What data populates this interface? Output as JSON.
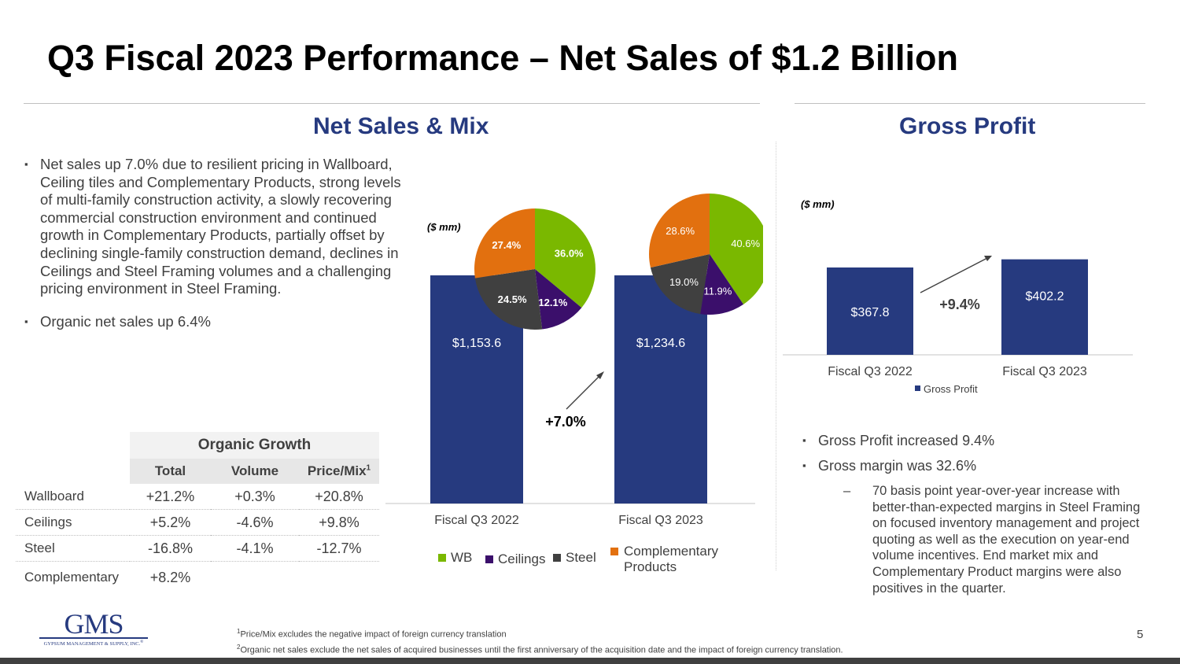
{
  "title": "Q3 Fiscal 2023 Performance – Net Sales of $1.2 Billion",
  "net_sales": {
    "heading": "Net Sales & Mix",
    "bullets": [
      "Net sales up 7.0% due to resilient pricing in Wallboard, Ceiling tiles and Complementary Products, strong levels of multi-family construction activity, a slowly recovering commercial construction environment and continued growth in Complementary Products, partially offset by declining single-family construction demand, declines in Ceilings and Steel Framing volumes and a challenging pricing environment in Steel Framing.",
      "Organic net sales up 6.4%"
    ],
    "unit_label": "($ mm)",
    "growth_label": "+7.0%"
  },
  "organic_growth": {
    "title": "Organic Growth",
    "columns": [
      "Total",
      "Volume",
      "Price/Mix"
    ],
    "price_mix_sup": "1",
    "rows": [
      {
        "label": "Wallboard",
        "total": "+21.2%",
        "volume": "+0.3%",
        "price_mix": "+20.8%"
      },
      {
        "label": "Ceilings",
        "total": "+5.2%",
        "volume": "-4.6%",
        "price_mix": "+9.8%"
      },
      {
        "label": "Steel",
        "total": "-16.8%",
        "volume": "-4.1%",
        "price_mix": "-12.7%"
      },
      {
        "label": "Complementary",
        "total": "+8.2%",
        "volume": "",
        "price_mix": ""
      }
    ]
  },
  "gross_profit": {
    "heading": "Gross Profit",
    "unit_label": "($ mm)",
    "growth_label": "+9.4%",
    "bullets": [
      "Gross Profit increased 9.4%",
      "Gross margin was 32.6%"
    ],
    "sub_bullet": "70 basis point year-over-year increase with better-than-expected margins in Steel Framing on focused inventory management and project quoting as well as the execution on year-end volume incentives.  End market mix and Complementary Product margins were also positives in the quarter.",
    "dash": "–"
  },
  "chart_data": [
    {
      "type": "bar",
      "title": "Net Sales",
      "categories": [
        "Fiscal Q3 2022",
        "Fiscal Q3 2023"
      ],
      "values": [
        1153.6,
        1234.6
      ],
      "value_labels": [
        "$1,153.6",
        "$1,234.6"
      ],
      "ylim": [
        0,
        1300
      ],
      "color": "#263a7f"
    },
    {
      "type": "pie",
      "title": "Fiscal Q3 2022 Mix",
      "labels": [
        "WB",
        "Ceilings",
        "Steel",
        "Complementary Products"
      ],
      "values": [
        36.0,
        12.1,
        24.5,
        27.4
      ],
      "value_labels": [
        "36.0%",
        "12.1%",
        "24.5%",
        "27.4%"
      ],
      "colors": [
        "#7ab800",
        "#3b0f6b",
        "#404040",
        "#e2700f"
      ]
    },
    {
      "type": "pie",
      "title": "Fiscal Q3 2023 Mix",
      "labels": [
        "WB",
        "Ceilings",
        "Steel",
        "Complementary Products"
      ],
      "values": [
        40.6,
        11.9,
        19.0,
        28.6
      ],
      "value_labels": [
        "40.6%",
        "11.9%",
        "19.0%",
        "28.6%"
      ],
      "colors": [
        "#7ab800",
        "#3b0f6b",
        "#404040",
        "#e2700f"
      ]
    },
    {
      "type": "bar",
      "title": "Gross Profit",
      "categories": [
        "Fiscal Q3 2022",
        "Fiscal Q3 2023"
      ],
      "values": [
        367.8,
        402.2
      ],
      "value_labels": [
        "$367.8",
        "$402.2"
      ],
      "ylim": [
        0,
        480
      ],
      "legend": [
        "Gross Profit"
      ],
      "color": "#263a7f"
    }
  ],
  "mix_legend": [
    {
      "label": "WB",
      "color": "#7ab800"
    },
    {
      "label": "Ceilings",
      "color": "#3b0f6b"
    },
    {
      "label": "Steel",
      "color": "#404040"
    },
    {
      "label": "Complementary Products",
      "color": "#e2700f"
    }
  ],
  "footnotes": {
    "n1_sup": "1",
    "n1": "Price/Mix excludes the negative impact of foreign currency translation",
    "n2_sup": "2",
    "n2": "Organic net sales exclude the net sales of acquired businesses until the first anniversary of the acquisition date and the impact of foreign currency translation."
  },
  "logo": {
    "text": "GMS",
    "subtext": "GYPSUM MANAGEMENT & SUPPLY, INC.",
    "mark": "®"
  },
  "page_number": "5"
}
